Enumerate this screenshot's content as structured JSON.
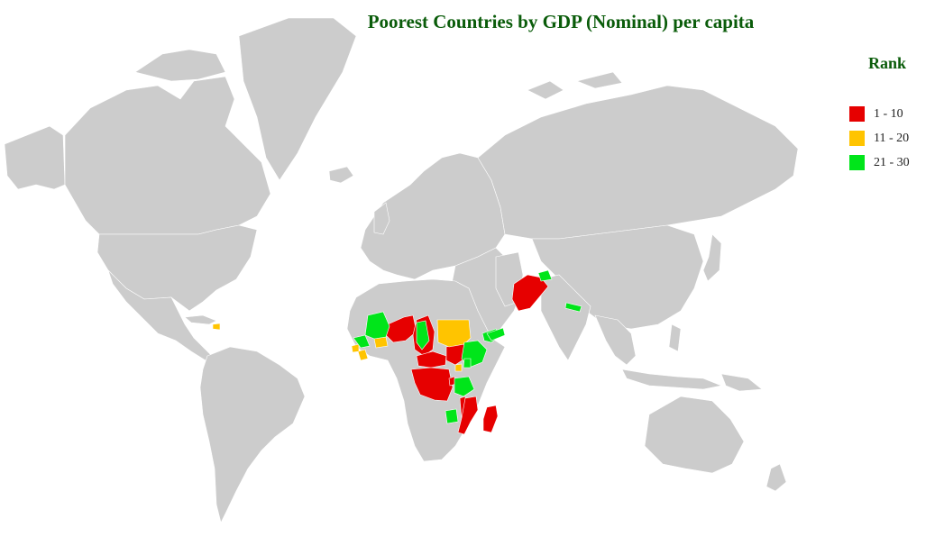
{
  "title": "Poorest Countries by GDP (Nominal) per capita",
  "legend": {
    "title": "Rank",
    "items": [
      {
        "label": "1 - 10",
        "color": "#e60000"
      },
      {
        "label": "11 - 20",
        "color": "#ffc400"
      },
      {
        "label": "21 - 30",
        "color": "#00e51a"
      }
    ]
  },
  "colors": {
    "land": "#cccccc",
    "border": "#ffffff",
    "title": "#0a5c0a"
  },
  "highlighted_regions": {
    "rank_1_10": [
      "Afghanistan",
      "Niger",
      "Chad",
      "Central African Republic",
      "DR Congo",
      "South Sudan",
      "Burundi",
      "Malawi",
      "Mozambique",
      "Madagascar"
    ],
    "rank_11_20": [
      "Sudan",
      "Haiti",
      "Liberia",
      "Sierra Leone",
      "Rwanda",
      "Burkina Faso"
    ],
    "rank_21_30": [
      "Mali",
      "Guinea",
      "Ethiopia",
      "Somalia",
      "Yemen",
      "Tanzania",
      "Zimbabwe",
      "Nepal",
      "Tajikistan",
      "Uganda"
    ]
  }
}
